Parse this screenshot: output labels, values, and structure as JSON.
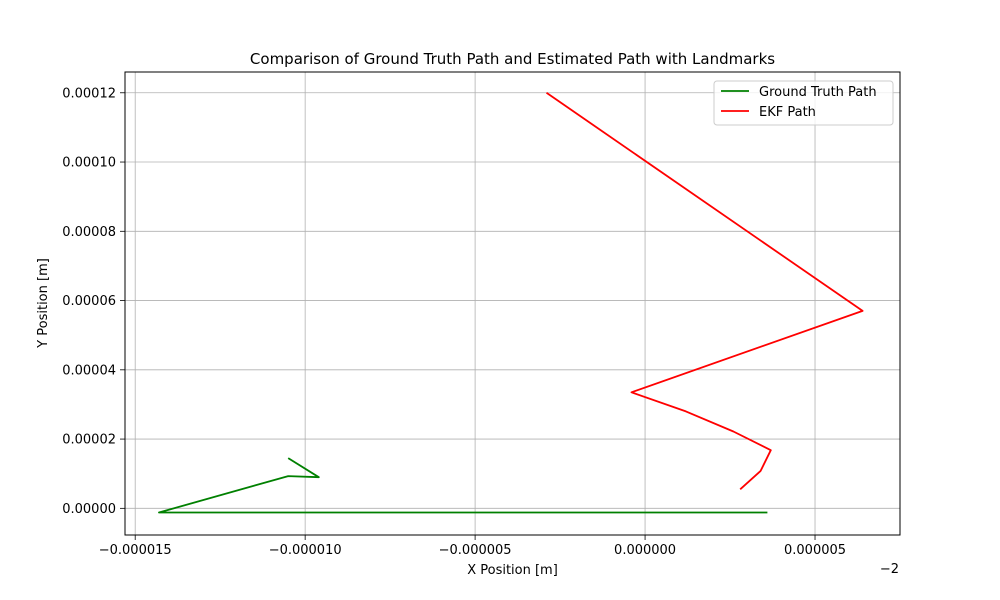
{
  "chart_data": {
    "type": "line",
    "title": "Comparison of Ground Truth Path and Estimated Path with Landmarks",
    "xlabel": "X Position [m]",
    "ylabel": "Y Position [m]",
    "x_offset_label": "−2",
    "xlim": [
      -1.53e-05,
      7.5e-06
    ],
    "ylim": [
      -7.7e-06,
      0.000126
    ],
    "x_ticks": [
      -1.5e-05,
      -1e-05,
      -5e-06,
      0.0,
      5e-06
    ],
    "x_tick_labels": [
      "−0.000015",
      "−0.000010",
      "−0.000005",
      "0.000000",
      "0.000005"
    ],
    "y_ticks": [
      0.0,
      2e-05,
      4e-05,
      6e-05,
      8e-05,
      0.0001,
      0.00012
    ],
    "y_tick_labels": [
      "0.00000",
      "0.00002",
      "0.00004",
      "0.00006",
      "0.00008",
      "0.00010",
      "0.00012"
    ],
    "grid": true,
    "legend_position": "top-right",
    "series": [
      {
        "name": "Ground Truth Path",
        "color": "#008000",
        "x": [
          -1.05e-05,
          -9.6e-06,
          -1.05e-05,
          -1.43e-05,
          -1.27e-05,
          3.6e-06
        ],
        "y": [
          1.45e-05,
          9e-06,
          9.3e-06,
          -1.2e-06,
          -1.2e-06,
          -1.2e-06
        ]
      },
      {
        "name": "EKF Path",
        "color": "#ff0000",
        "x": [
          -2.9e-06,
          6.4e-06,
          -4e-07,
          1.2e-06,
          2.6e-06,
          3.7e-06,
          3.4e-06,
          2.8e-06
        ],
        "y": [
          0.00012,
          5.7e-05,
          3.35e-05,
          2.8e-05,
          2.22e-05,
          1.68e-05,
          1.08e-05,
          5.5e-06
        ]
      }
    ]
  }
}
